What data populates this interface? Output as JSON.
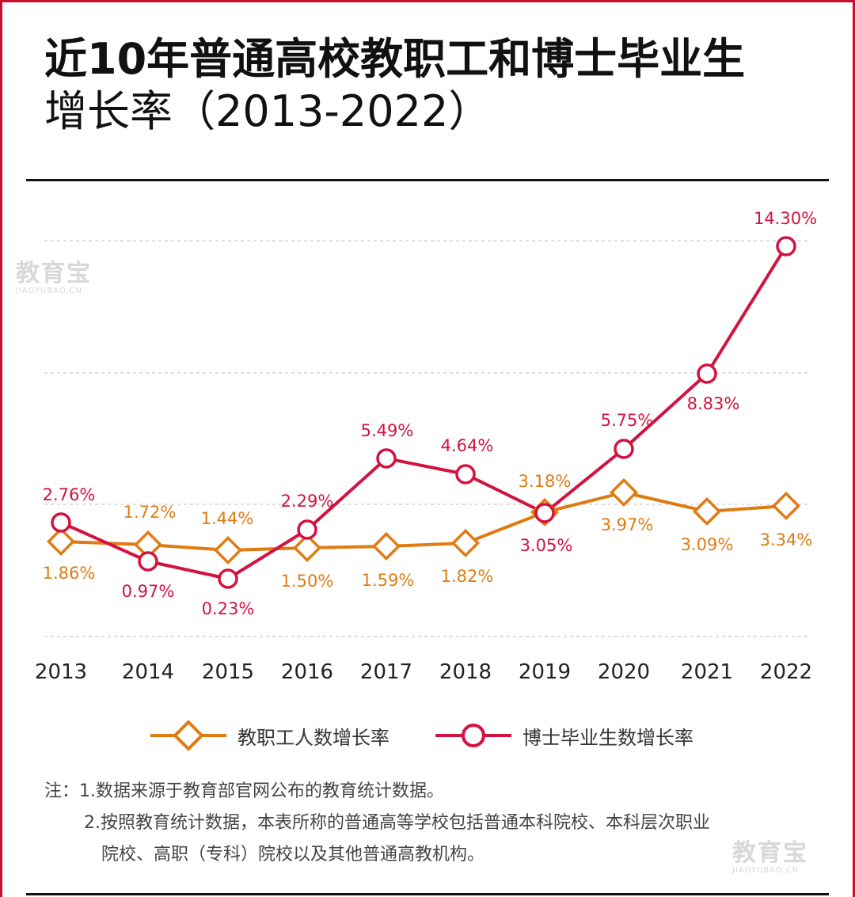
{
  "title_line1": "近10年普通高校教职工和博士毕业生",
  "title_line2": "增长率（2013-2022）",
  "chart_data": {
    "type": "line",
    "categories": [
      "2013",
      "2014",
      "2015",
      "2016",
      "2017",
      "2018",
      "2019",
      "2020",
      "2021",
      "2022"
    ],
    "series": [
      {
        "name": "教职工人数增长率",
        "values": [
          1.86,
          1.72,
          1.44,
          1.5,
          1.59,
          1.82,
          3.18,
          3.97,
          3.09,
          3.34
        ],
        "labels": [
          "1.86%",
          "1.72%",
          "1.44%",
          "1.50%",
          "1.59%",
          "1.82%",
          "3.18%",
          "3.97%",
          "3.09%",
          "3.34%"
        ],
        "color": "#e07b12",
        "marker": "diamond"
      },
      {
        "name": "博士毕业生数增长率",
        "values": [
          2.76,
          0.97,
          0.23,
          2.29,
          5.49,
          4.64,
          3.05,
          5.75,
          8.83,
          14.3
        ],
        "labels": [
          "2.76%",
          "0.97%",
          "0.23%",
          "2.29%",
          "5.49%",
          "4.64%",
          "3.05%",
          "5.75%",
          "8.83%",
          "14.30%"
        ],
        "color": "#d4123f",
        "marker": "circle"
      }
    ],
    "grid": "dashed horizontal",
    "legend": "bottom"
  },
  "legend": {
    "staff": "教职工人数增长率",
    "phd": "博士毕业生数增长率"
  },
  "notes": {
    "line1": "注：1.数据来源于教育部官网公布的教育统计数据。",
    "line2": "2.按照教育统计数据，本表所称的普通高等学校包括普通本科院校、本科层次职业",
    "line3": "院校、高职（专科）院校以及其他普通高教机构。"
  },
  "watermark": {
    "text": "教育宝",
    "sub": "JIAOYUBAO.CN"
  },
  "colors": {
    "frame": "#c8102e",
    "staff": "#e07b12",
    "phd": "#d4123f"
  }
}
